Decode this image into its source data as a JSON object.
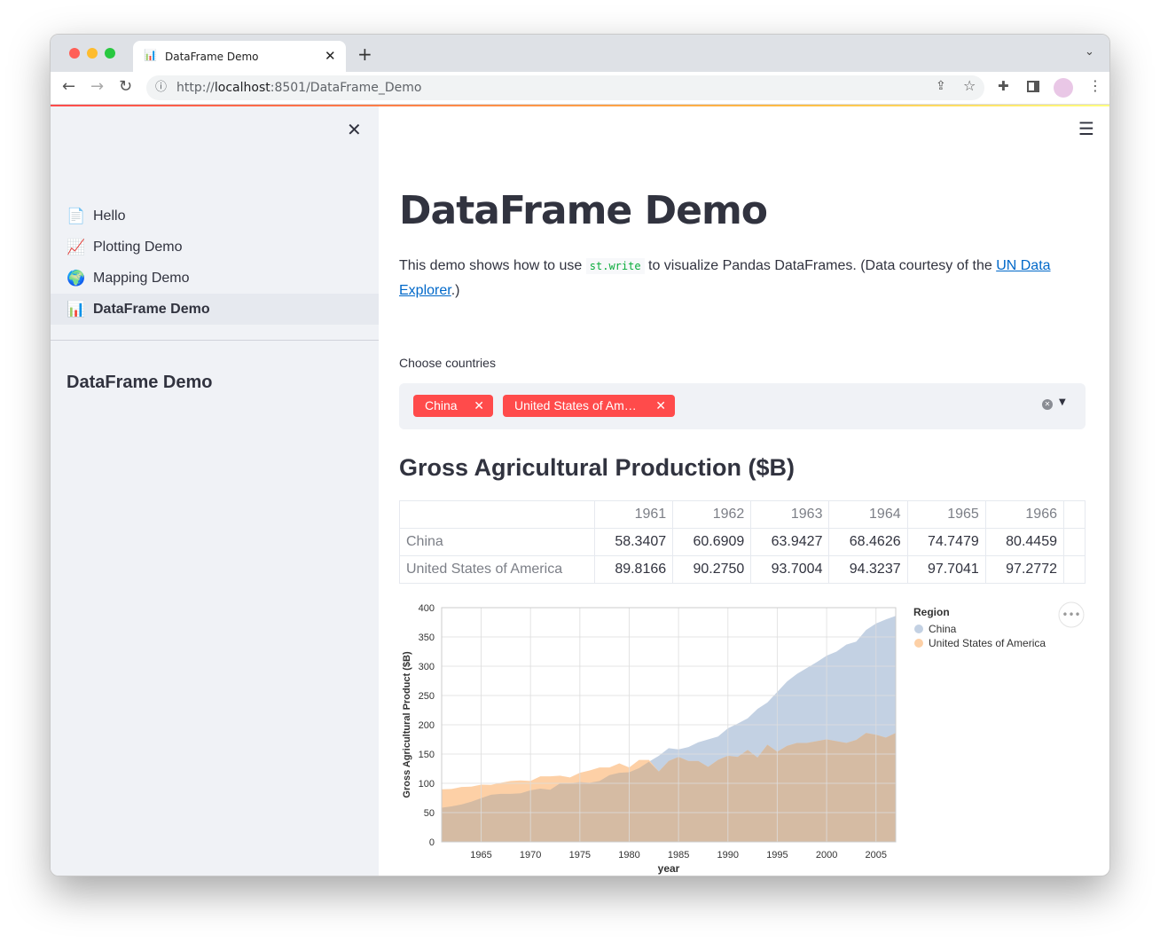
{
  "browser": {
    "tab_title": "DataFrame Demo",
    "url_host": "localhost",
    "url_prefix": "http://",
    "url_rest": ":8501/DataFrame_Demo"
  },
  "sidebar": {
    "items": [
      {
        "label": "Hello",
        "icon": "📄"
      },
      {
        "label": "Plotting Demo",
        "icon": "📈"
      },
      {
        "label": "Mapping Demo",
        "icon": "🌍"
      },
      {
        "label": "DataFrame Demo",
        "icon": "📊",
        "active": true
      }
    ],
    "section_title": "DataFrame Demo"
  },
  "main": {
    "title": "DataFrame Demo",
    "intro_before": "This demo shows how to use ",
    "intro_code": "st.write",
    "intro_after": " to visualize Pandas DataFrames. (Data courtesy of the ",
    "link_text_1": "UN Data",
    "link_text_2": "Explorer",
    "intro_end": ".)",
    "select_label": "Choose countries",
    "selected": [
      "China",
      "United States of Am…"
    ],
    "subheader": "Gross Agricultural Production ($B)"
  },
  "table": {
    "columns": [
      "1961",
      "1962",
      "1963",
      "1964",
      "1965",
      "1966"
    ],
    "rows": [
      {
        "index": "China",
        "values": [
          "58.3407",
          "60.6909",
          "63.9427",
          "68.4626",
          "74.7479",
          "80.4459"
        ]
      },
      {
        "index": "United States of America",
        "values": [
          "89.8166",
          "90.2750",
          "93.7004",
          "94.3237",
          "97.7041",
          "97.2772"
        ]
      }
    ]
  },
  "chart_data": {
    "type": "area",
    "xlabel": "year",
    "ylabel": "Gross Agricultural Product ($B)",
    "ylim": [
      0,
      400
    ],
    "xlim": [
      1961,
      2007
    ],
    "yticks": [
      0,
      50,
      100,
      150,
      200,
      250,
      300,
      350,
      400
    ],
    "xticks": [
      1965,
      1970,
      1975,
      1980,
      1985,
      1990,
      1995,
      2000,
      2005
    ],
    "grid": true,
    "legend_title": "Region",
    "legend_placement": "right",
    "x": [
      1961,
      1962,
      1963,
      1964,
      1965,
      1966,
      1967,
      1968,
      1969,
      1970,
      1971,
      1972,
      1973,
      1974,
      1975,
      1976,
      1977,
      1978,
      1979,
      1980,
      1981,
      1982,
      1983,
      1984,
      1985,
      1986,
      1987,
      1988,
      1989,
      1990,
      1991,
      1992,
      1993,
      1994,
      1995,
      1996,
      1997,
      1998,
      1999,
      2000,
      2001,
      2002,
      2003,
      2004,
      2005,
      2006,
      2007
    ],
    "series": [
      {
        "name": "China",
        "color": "#c3d1e3",
        "values": [
          58.3,
          60.7,
          63.9,
          68.5,
          74.7,
          80.4,
          82,
          82,
          83,
          88,
          91,
          89,
          100,
          100,
          102,
          101,
          104,
          114,
          118,
          119,
          126,
          137,
          147,
          160,
          158,
          162,
          170,
          175,
          180,
          194,
          202,
          211,
          227,
          238,
          256,
          274,
          287,
          297,
          307,
          318,
          325,
          337,
          342,
          362,
          373,
          380,
          386
        ]
      },
      {
        "name": "United States of America",
        "color": "#fdd0a6",
        "values": [
          89.8,
          90.3,
          93.7,
          94.3,
          97.7,
          97.3,
          101,
          104,
          105,
          104,
          112,
          112,
          113,
          110,
          118,
          122,
          127,
          127,
          134,
          127,
          140,
          140,
          120,
          138,
          145,
          138,
          138,
          128,
          140,
          147,
          145,
          157,
          144,
          166,
          154,
          164,
          169,
          169,
          172,
          175,
          172,
          169,
          174,
          186,
          183,
          178,
          186
        ]
      }
    ]
  }
}
